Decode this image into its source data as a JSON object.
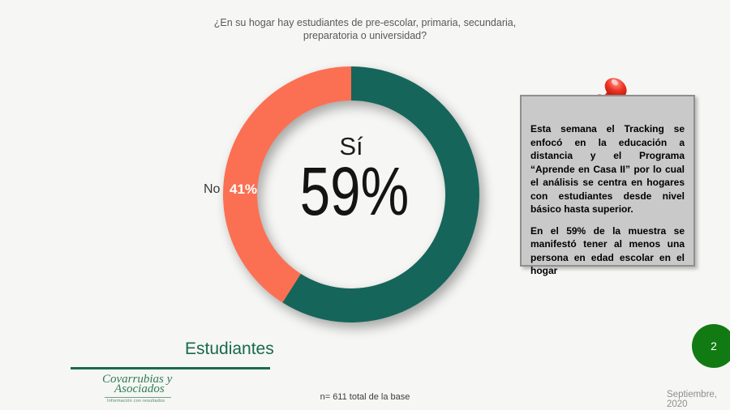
{
  "slide": {
    "title": "¿En su hogar hay estudiantes de pre-escolar, primaria, secundaria, preparatoria o universidad?",
    "section_label": "Estudiantes",
    "base_note": "n= 611 total de la base",
    "date": "Septiembre, 2020",
    "page_number": "2"
  },
  "chart_data": {
    "type": "pie",
    "subtype": "donut",
    "title": "¿En su hogar hay estudiantes de pre-escolar, primaria, secundaria, preparatoria o universidad?",
    "categories": [
      "Sí",
      "No"
    ],
    "values": [
      59,
      41
    ],
    "unit": "%",
    "colors": [
      "#16655a",
      "#fb7053"
    ],
    "start_angle_deg": 0,
    "direction": "clockwise",
    "legend_position": "none",
    "labels": {
      "center_category": "Sí",
      "center_value": "59%",
      "outside_category": "No",
      "outside_value": "41%"
    }
  },
  "note_box": {
    "paragraphs": [
      "Esta semana el Tracking se enfocó en la educación a distancia y el Programa “Aprende en Casa II” por lo cual el análisis se centra en hogares con estudiantes desde nivel básico hasta superior.",
      "En el 59% de la muestra se manifestó tener al menos una persona en edad escolar en el hogar"
    ]
  },
  "logo": {
    "name_line1": "Covarrubias y",
    "name_line2": "Asociados",
    "tagline": "Información con resultados"
  }
}
